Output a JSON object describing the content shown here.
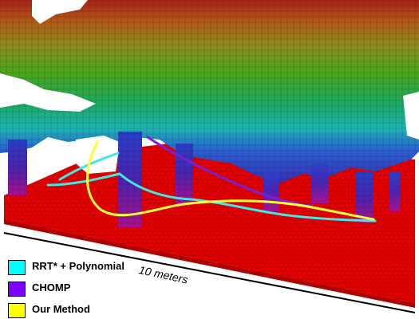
{
  "scale_label": "10 meters",
  "legend": [
    {
      "label": "RRT* + Polynomial",
      "color": "#00ffff"
    },
    {
      "label": "CHOMP",
      "color": "#8000ff"
    },
    {
      "label": "Our Method",
      "color": "#ffff00"
    }
  ],
  "colors": {
    "floor": "#e60000",
    "floor_grid": "#b80000",
    "rrt_path": "#40e8e8",
    "chomp_path": "#7a1fd6",
    "our_path": "#ffff33",
    "scale_line": "#000000"
  }
}
